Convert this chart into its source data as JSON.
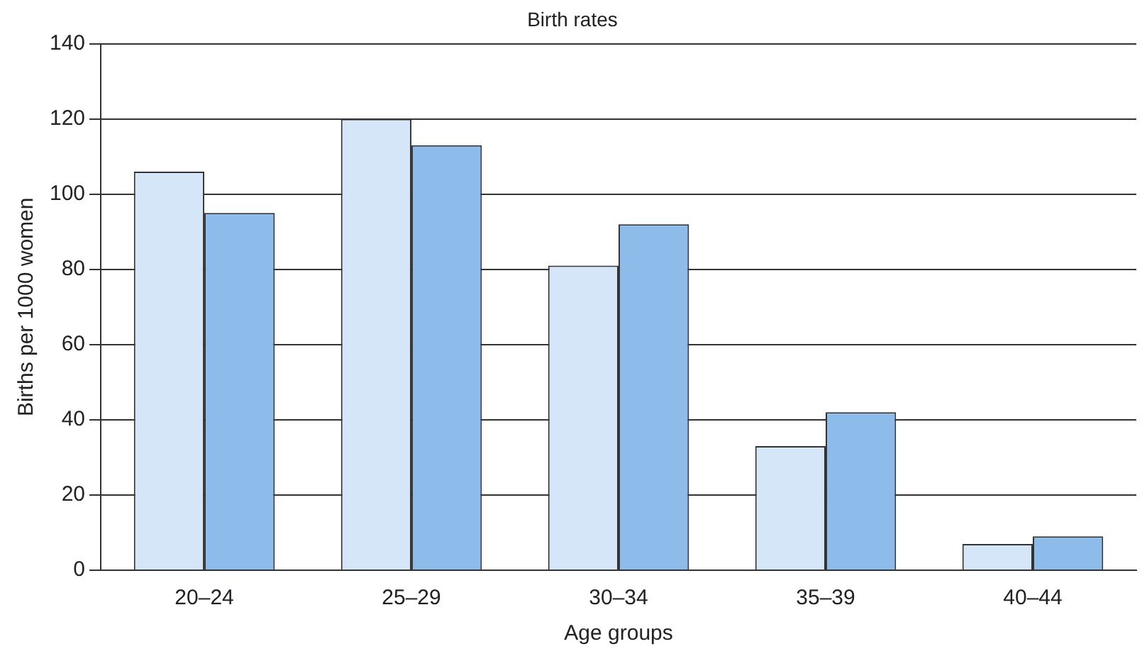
{
  "chart_data": {
    "type": "bar",
    "title": "Birth rates",
    "xlabel": "Age groups",
    "ylabel": "Births per 1000 women",
    "categories": [
      "20–24",
      "25–29",
      "30–34",
      "35–39",
      "40–44"
    ],
    "series": [
      {
        "color": "#d4e6f7",
        "values": [
          106,
          120,
          81,
          33,
          7
        ]
      },
      {
        "color": "#8dbbea",
        "values": [
          95,
          113,
          92,
          42,
          9
        ]
      }
    ],
    "ylim": [
      0,
      140
    ],
    "yticks": [
      0,
      20,
      40,
      60,
      80,
      100,
      120,
      140
    ],
    "grid": "y",
    "legend": false
  }
}
